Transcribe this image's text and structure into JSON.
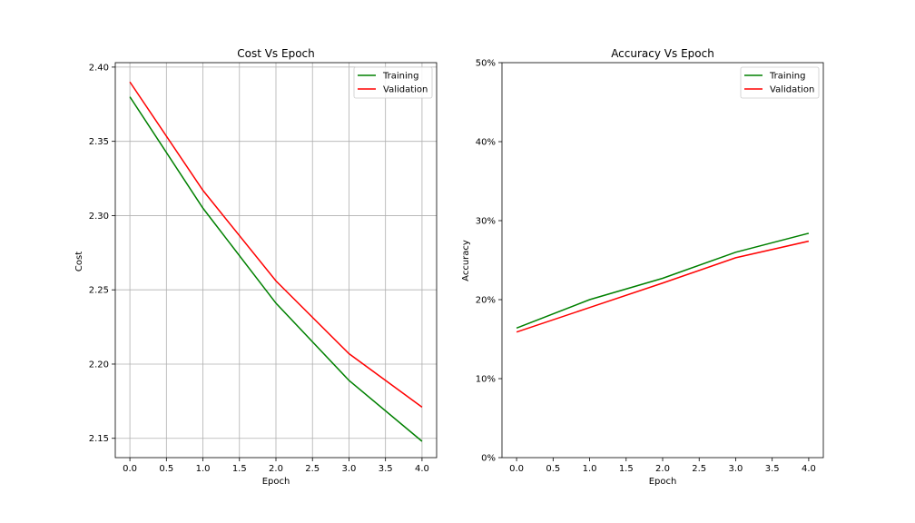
{
  "chart_data": [
    {
      "type": "line",
      "title": "Cost Vs Epoch",
      "xlabel": "Epoch",
      "ylabel": "Cost",
      "x": [
        0,
        1,
        2,
        3,
        4
      ],
      "xlim": [
        -0.2,
        4.2
      ],
      "ylim": [
        2.137,
        2.403
      ],
      "xticks": [
        0.0,
        0.5,
        1.0,
        1.5,
        2.0,
        2.5,
        3.0,
        3.5,
        4.0
      ],
      "xtick_labels": [
        "0.0",
        "0.5",
        "1.0",
        "1.5",
        "2.0",
        "2.5",
        "3.0",
        "3.5",
        "4.0"
      ],
      "yticks": [
        2.15,
        2.2,
        2.25,
        2.3,
        2.35,
        2.4
      ],
      "ytick_labels": [
        "2.15",
        "2.20",
        "2.25",
        "2.30",
        "2.35",
        "2.40"
      ],
      "grid": true,
      "legend": "top-right",
      "series": [
        {
          "name": "Training",
          "color": "#008000",
          "values": [
            2.38,
            2.305,
            2.241,
            2.189,
            2.148
          ]
        },
        {
          "name": "Validation",
          "color": "#ff0000",
          "values": [
            2.39,
            2.317,
            2.256,
            2.207,
            2.171
          ]
        }
      ]
    },
    {
      "type": "line",
      "title": "Accuracy Vs Epoch",
      "xlabel": "Epoch",
      "ylabel": "Accuracy",
      "x": [
        0,
        1,
        2,
        3,
        4
      ],
      "xlim": [
        -0.2,
        4.2
      ],
      "ylim": [
        0,
        50
      ],
      "xticks": [
        0.0,
        0.5,
        1.0,
        1.5,
        2.0,
        2.5,
        3.0,
        3.5,
        4.0
      ],
      "xtick_labels": [
        "0.0",
        "0.5",
        "1.0",
        "1.5",
        "2.0",
        "2.5",
        "3.0",
        "3.5",
        "4.0"
      ],
      "yticks": [
        0,
        10,
        20,
        30,
        40,
        50
      ],
      "ytick_labels": [
        "0%",
        "10%",
        "20%",
        "30%",
        "40%",
        "50%"
      ],
      "grid": false,
      "legend": "top-right",
      "series": [
        {
          "name": "Training",
          "color": "#008000",
          "values": [
            16.4,
            20.0,
            22.7,
            26.0,
            28.4
          ]
        },
        {
          "name": "Validation",
          "color": "#ff0000",
          "values": [
            15.9,
            19.0,
            22.1,
            25.3,
            27.4
          ]
        }
      ]
    }
  ]
}
